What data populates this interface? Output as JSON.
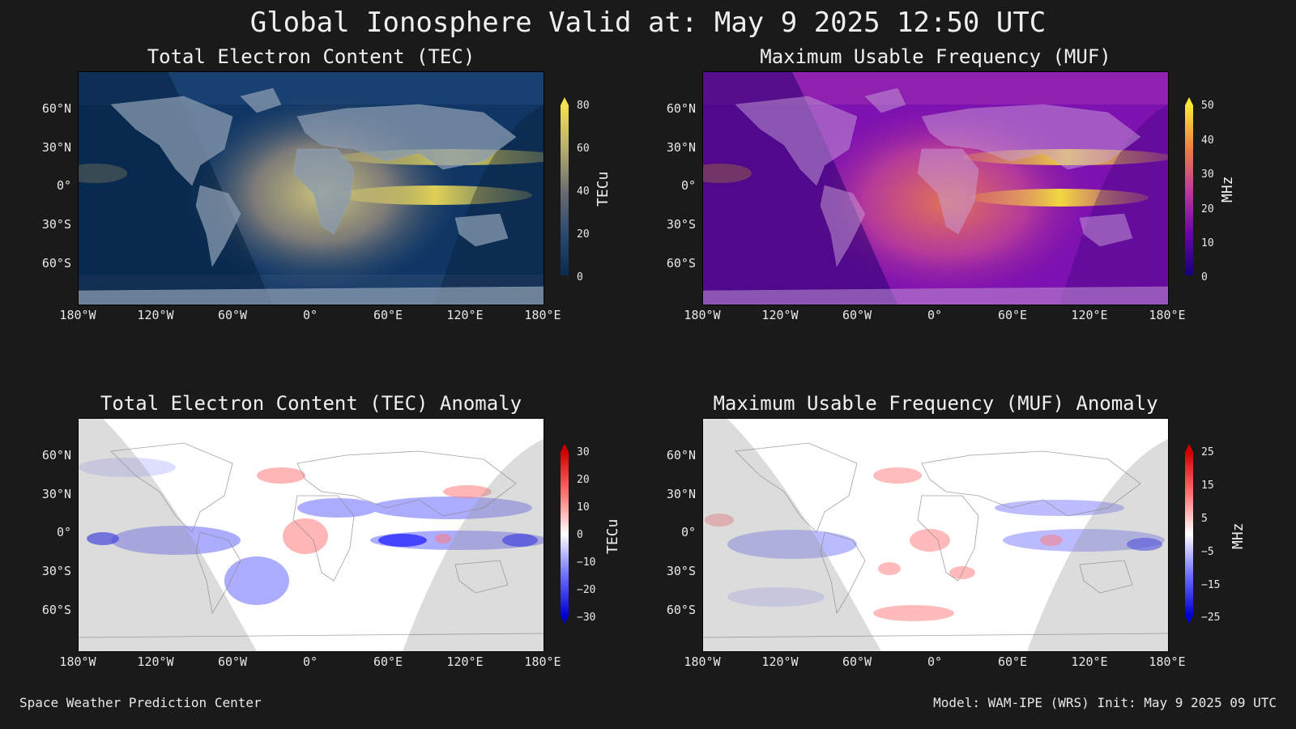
{
  "title": "Global Ionosphere Valid at: May 9 2025 12:50 UTC",
  "panels": {
    "tec": {
      "title": "Total Electron Content (TEC)",
      "unit": "TECu",
      "ticks": [
        "80",
        "60",
        "40",
        "20",
        "0"
      ],
      "colors": {
        "low": "#0b2a50",
        "mid": "#6d6d70",
        "high": "#f5e04a"
      }
    },
    "muf": {
      "title": "Maximum Usable Frequency (MUF)",
      "unit": "MHz",
      "ticks": [
        "50",
        "40",
        "30",
        "20",
        "10",
        "0"
      ],
      "colors": {
        "low": "#15007a",
        "mid": "#c03a9c",
        "high": "#f7e83a"
      }
    },
    "tec_anom": {
      "title": "Total Electron Content (TEC) Anomaly",
      "unit": "TECu",
      "ticks": [
        "30",
        "20",
        "10",
        "0",
        "−10",
        "−20",
        "−30"
      ],
      "colors": {
        "neg": "#0000ff",
        "zero": "#ffffff",
        "pos": "#ff0000"
      }
    },
    "muf_anom": {
      "title": "Maximum Usable Frequency (MUF) Anomaly",
      "unit": "MHz",
      "ticks": [
        "25",
        "15",
        "5",
        "−5",
        "−15",
        "−25"
      ],
      "colors": {
        "neg": "#0000ff",
        "zero": "#ffffff",
        "pos": "#ff0000"
      }
    }
  },
  "axes": {
    "lon_ticks": [
      "180°W",
      "120°W",
      "60°W",
      "0°",
      "60°E",
      "120°E",
      "180°E"
    ],
    "lat_ticks": [
      "60°N",
      "30°N",
      "0°",
      "30°S",
      "60°S"
    ]
  },
  "footer": {
    "left": "Space Weather Prediction Center",
    "right": "Model: WAM-IPE (WRS) Init: May 9 2025 09 UTC"
  }
}
